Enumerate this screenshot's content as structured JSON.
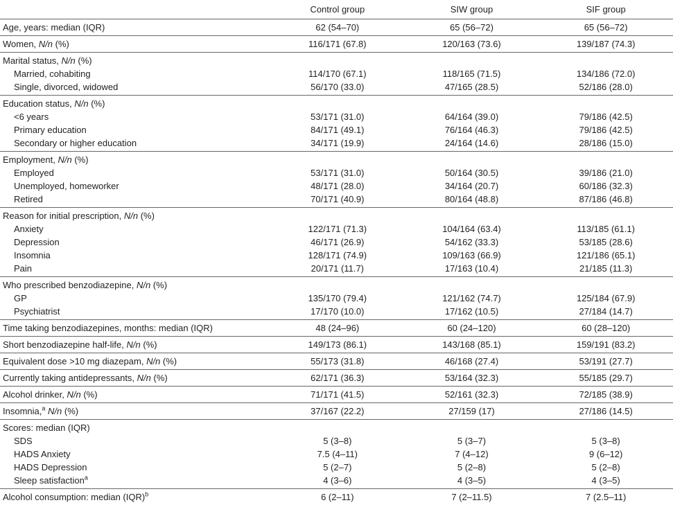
{
  "table": {
    "columns": [
      "Control group",
      "SIW group",
      "SIF group"
    ],
    "groups": [
      {
        "rows": [
          {
            "label": [
              "Age, years: median (IQR)"
            ],
            "values": [
              "62 (54–70)",
              "65 (56–72)",
              "65 (56–72)"
            ]
          }
        ]
      },
      {
        "rows": [
          {
            "label": [
              "Women, ",
              {
                "em": "N/n"
              },
              " (%)"
            ],
            "values": [
              "116/171 (67.8)",
              "120/163 (73.6)",
              "139/187 (74.3)"
            ]
          }
        ]
      },
      {
        "heading": [
          "Marital status, ",
          {
            "em": "N/n"
          },
          " (%)"
        ],
        "rows": [
          {
            "label": [
              "Married, cohabiting"
            ],
            "values": [
              "114/170 (67.1)",
              "118/165 (71.5)",
              "134/186 (72.0)"
            ]
          },
          {
            "label": [
              "Single, divorced, widowed"
            ],
            "values": [
              "56/170 (33.0)",
              "47/165 (28.5)",
              "52/186 (28.0)"
            ]
          }
        ]
      },
      {
        "heading": [
          "Education status, ",
          {
            "em": "N/n"
          },
          " (%)"
        ],
        "rows": [
          {
            "label": [
              "<6 years"
            ],
            "values": [
              "53/171 (31.0)",
              "64/164 (39.0)",
              "79/186 (42.5)"
            ]
          },
          {
            "label": [
              "Primary education"
            ],
            "values": [
              "84/171 (49.1)",
              "76/164 (46.3)",
              "79/186 (42.5)"
            ]
          },
          {
            "label": [
              "Secondary or higher education"
            ],
            "values": [
              "34/171 (19.9)",
              "24/164 (14.6)",
              "28/186 (15.0)"
            ]
          }
        ]
      },
      {
        "heading": [
          "Employment, ",
          {
            "em": "N/n"
          },
          " (%)"
        ],
        "rows": [
          {
            "label": [
              "Employed"
            ],
            "values": [
              "53/171 (31.0)",
              "50/164 (30.5)",
              "39/186 (21.0)"
            ]
          },
          {
            "label": [
              "Unemployed, homeworker"
            ],
            "values": [
              "48/171 (28.0)",
              "34/164 (20.7)",
              "60/186 (32.3)"
            ]
          },
          {
            "label": [
              "Retired"
            ],
            "values": [
              "70/171 (40.9)",
              "80/164 (48.8)",
              "87/186 (46.8)"
            ]
          }
        ]
      },
      {
        "heading": [
          "Reason for initial prescription, ",
          {
            "em": "N/n"
          },
          " (%)"
        ],
        "rows": [
          {
            "label": [
              "Anxiety"
            ],
            "values": [
              "122/171 (71.3)",
              "104/164 (63.4)",
              "113/185 (61.1)"
            ]
          },
          {
            "label": [
              "Depression"
            ],
            "values": [
              "46/171 (26.9)",
              "54/162 (33.3)",
              "53/185 (28.6)"
            ]
          },
          {
            "label": [
              "Insomnia"
            ],
            "values": [
              "128/171 (74.9)",
              "109/163 (66.9)",
              "121/186 (65.1)"
            ]
          },
          {
            "label": [
              "Pain"
            ],
            "values": [
              "20/171 (11.7)",
              "17/163 (10.4)",
              "21/185 (11.3)"
            ]
          }
        ]
      },
      {
        "heading": [
          "Who prescribed benzodiazepine, ",
          {
            "em": "N/n"
          },
          " (%)"
        ],
        "rows": [
          {
            "label": [
              "GP"
            ],
            "values": [
              "135/170 (79.4)",
              "121/162 (74.7)",
              "125/184 (67.9)"
            ]
          },
          {
            "label": [
              "Psychiatrist"
            ],
            "values": [
              "17/170 (10.0)",
              "17/162 (10.5)",
              "27/184 (14.7)"
            ]
          }
        ]
      },
      {
        "rows": [
          {
            "label": [
              "Time taking benzodiazepines, months: median (IQR)"
            ],
            "values": [
              "48 (24–96)",
              "60 (24–120)",
              "60 (28–120)"
            ]
          }
        ]
      },
      {
        "rows": [
          {
            "label": [
              "Short benzodiazepine half-life, ",
              {
                "em": "N/n"
              },
              " (%)"
            ],
            "values": [
              "149/173 (86.1)",
              "143/168 (85.1)",
              "159/191 (83.2)"
            ]
          }
        ]
      },
      {
        "rows": [
          {
            "label": [
              "Equivalent dose >10 mg diazepam, ",
              {
                "em": "N/n"
              },
              " (%)"
            ],
            "values": [
              "55/173 (31.8)",
              "46/168 (27.4)",
              "53/191 (27.7)"
            ]
          }
        ]
      },
      {
        "rows": [
          {
            "label": [
              "Currently taking antidepressants, ",
              {
                "em": "N/n"
              },
              " (%)"
            ],
            "values": [
              "62/171 (36.3)",
              "53/164 (32.3)",
              "55/185 (29.7)"
            ]
          }
        ]
      },
      {
        "rows": [
          {
            "label": [
              "Alcohol drinker, ",
              {
                "em": "N/n"
              },
              " (%)"
            ],
            "values": [
              "71/171 (41.5)",
              "52/161 (32.3)",
              "72/185 (38.9)"
            ]
          }
        ]
      },
      {
        "rows": [
          {
            "label": [
              "Insomnia,",
              {
                "sup": "a"
              },
              " ",
              {
                "em": "N/n"
              },
              " (%)"
            ],
            "values": [
              "37/167 (22.2)",
              "27/159 (17)",
              "27/186 (14.5)"
            ]
          }
        ]
      },
      {
        "heading": [
          "Scores: median (IQR)"
        ],
        "rows": [
          {
            "label": [
              "SDS"
            ],
            "values": [
              "5 (3–8)",
              "5 (3–7)",
              "5 (3–8)"
            ]
          },
          {
            "label": [
              "HADS Anxiety"
            ],
            "values": [
              "7.5 (4–11)",
              "7 (4–12)",
              "9 (6–12)"
            ]
          },
          {
            "label": [
              "HADS Depression"
            ],
            "values": [
              "5 (2–7)",
              "5 (2–8)",
              "5 (2–8)"
            ]
          },
          {
            "label": [
              "Sleep satisfaction",
              {
                "sup": "a"
              }
            ],
            "values": [
              "4 (3–6)",
              "4 (3–5)",
              "4 (3–5)"
            ]
          }
        ]
      },
      {
        "rows": [
          {
            "label": [
              "Alcohol consumption: median (IQR)",
              {
                "sup": "b"
              }
            ],
            "values": [
              "6 (2–11)",
              "7 (2–11.5)",
              "7 (2.5–11)"
            ]
          }
        ]
      }
    ]
  }
}
